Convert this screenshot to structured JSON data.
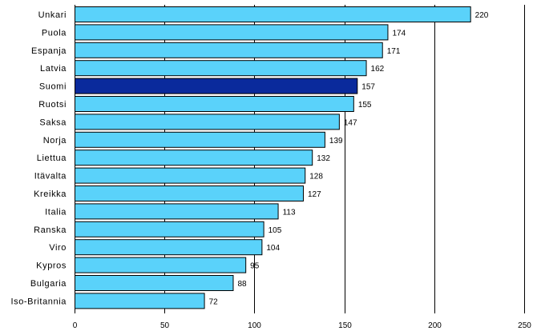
{
  "chart_data": {
    "type": "bar",
    "orientation": "horizontal",
    "title": "",
    "xlabel": "",
    "ylabel": "",
    "categories": [
      "Unkari",
      "Puola",
      "Espanja",
      "Latvia",
      "Suomi",
      "Ruotsi",
      "Saksa",
      "Norja",
      "Liettua",
      "Itävalta",
      "Kreikka",
      "Italia",
      "Ranska",
      "Viro",
      "Kypros",
      "Bulgaria",
      "Iso-Britannia"
    ],
    "values": [
      220,
      174,
      171,
      162,
      157,
      155,
      147,
      139,
      132,
      128,
      127,
      113,
      105,
      104,
      95,
      88,
      72
    ],
    "value_labels": [
      "220",
      "174",
      "171",
      "162",
      "157",
      "155",
      "147",
      "139",
      "132",
      "128",
      "127",
      "113",
      "105",
      "104",
      "95",
      "88",
      "72"
    ],
    "xlim": [
      0,
      250
    ],
    "xticks": [
      0,
      50,
      100,
      150,
      200,
      250
    ],
    "xtick_labels": [
      "0",
      "50",
      "100",
      "150",
      "200",
      "250"
    ],
    "grid": "vertical",
    "legend": "none",
    "colors": {
      "default_bar": "#5ad2fa",
      "highlight_bar": "#0a2a9c",
      "highlight_category": "Suomi",
      "grid": "#000000",
      "background": "#ffffff"
    }
  }
}
